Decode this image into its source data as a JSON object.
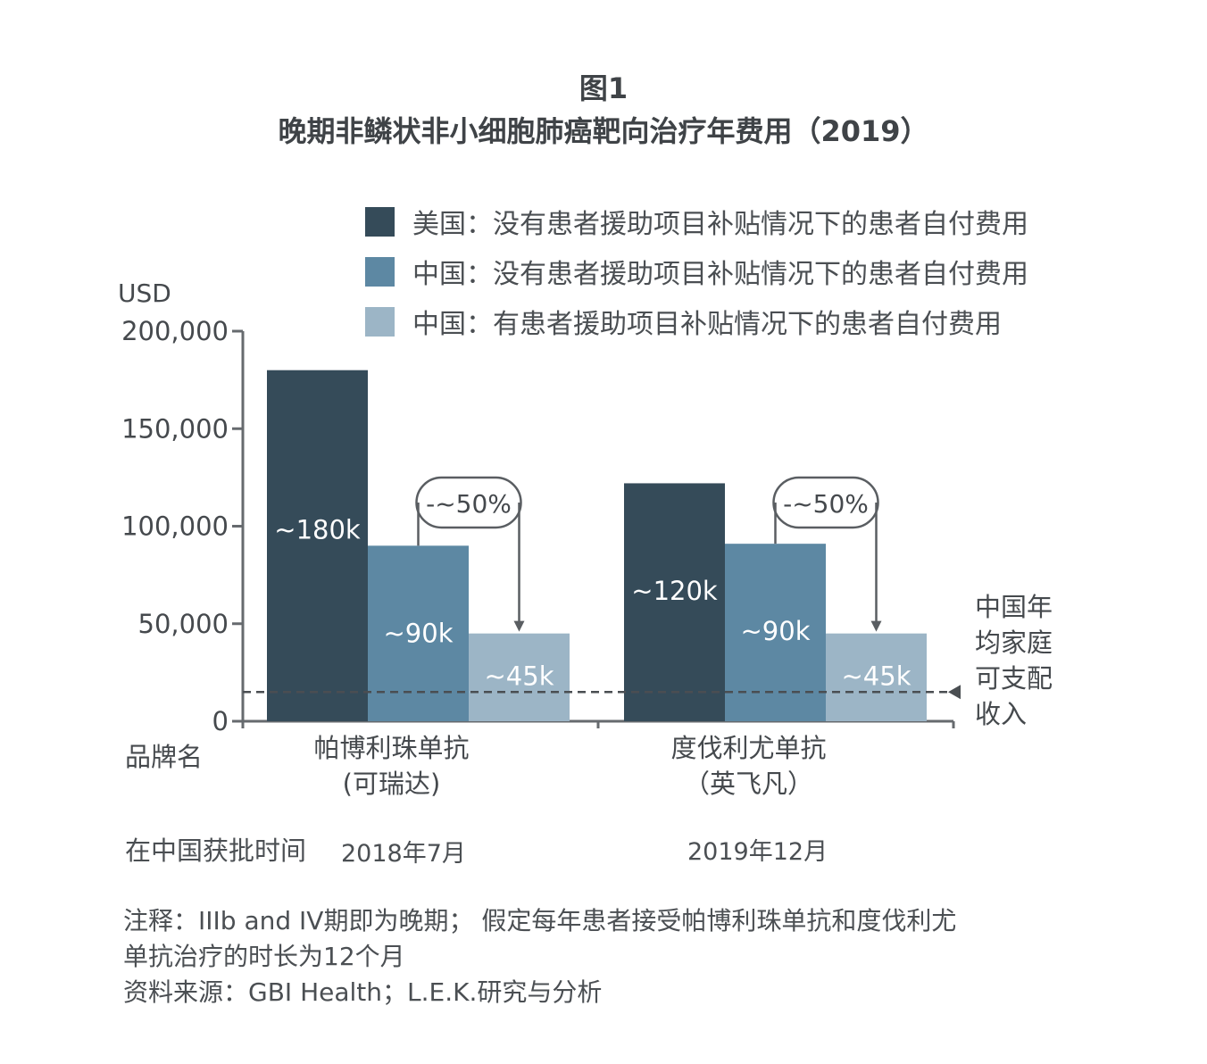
{
  "figure_number": "图1",
  "title": "晚期非鳞状非小细胞肺癌靶向治疗年费用（2019）",
  "legend": [
    {
      "label": "美国：没有患者援助项目补贴情况下的患者自付费用",
      "color": "#354b59"
    },
    {
      "label": "中国：没有患者援助项目补贴情况下的患者自付费用",
      "color": "#5d88a3"
    },
    {
      "label": "中国：有患者援助项目补贴情况下的患者自付费用",
      "color": "#9cb5c6"
    }
  ],
  "chart_data": {
    "type": "bar",
    "y_unit_label": "USD",
    "x_axis_label": "品牌名",
    "ylim": [
      0,
      200000
    ],
    "y_ticks": [
      "0",
      "50,000",
      "100,000",
      "150,000",
      "200,000"
    ],
    "y_tick_values": [
      0,
      50000,
      100000,
      150000,
      200000
    ],
    "categories": [
      {
        "name": "帕博利珠单抗",
        "brand": "(可瑞达)"
      },
      {
        "name": "度伐利尤单抗",
        "brand": "（英飞凡）"
      }
    ],
    "series": [
      {
        "values": [
          180000,
          122000
        ],
        "data_labels": [
          "~180k",
          "~120k"
        ],
        "color": "#354b59"
      },
      {
        "values": [
          90000,
          91000
        ],
        "data_labels": [
          "~90k",
          "~90k"
        ],
        "color": "#5d88a3"
      },
      {
        "values": [
          45000,
          45000
        ],
        "data_labels": [
          "~45k",
          "~45k"
        ],
        "color": "#9cb5c6"
      }
    ],
    "reduction_annotation": "-~50%",
    "reference_line": {
      "value": 15000,
      "label_lines": [
        "中国年",
        "均家庭",
        "可支配",
        "收入"
      ],
      "style": "dashed"
    }
  },
  "approval": {
    "label": "在中国获批时间",
    "dates": [
      "2018年7月",
      "2019年12月"
    ]
  },
  "notes": {
    "line1": "注释：IIIb and IV期即为晚期；  假定每年患者接受帕博利珠单抗和度伐利尤",
    "line2": "单抗治疗的时长为12个月",
    "source": "资料来源：GBI Health；L.E.K.研究与分析"
  }
}
